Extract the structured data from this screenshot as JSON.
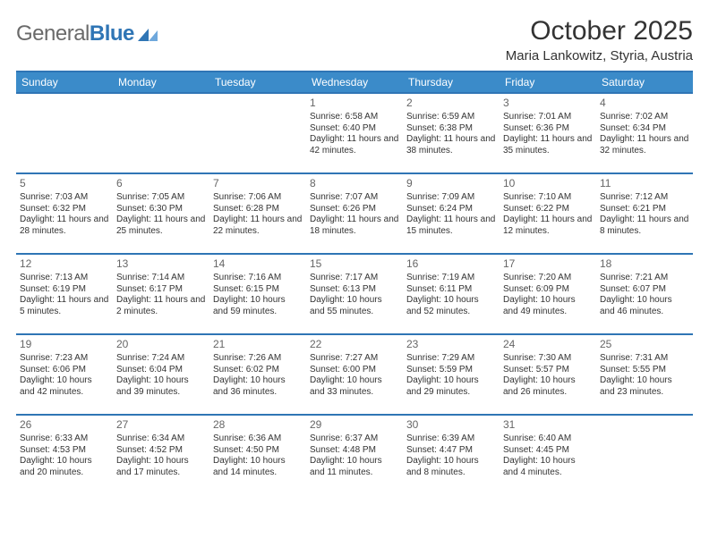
{
  "logo": {
    "text_gray": "General",
    "text_blue": "Blue"
  },
  "header": {
    "month_title": "October 2025",
    "location": "Maria Lankowitz, Styria, Austria"
  },
  "colors": {
    "header_bg": "#3b8bc9",
    "header_border": "#2f75b5",
    "text": "#333333",
    "muted": "#666666",
    "logo_gray": "#6a6a6a",
    "logo_blue": "#2f75b5",
    "background": "#ffffff"
  },
  "day_headers": [
    "Sunday",
    "Monday",
    "Tuesday",
    "Wednesday",
    "Thursday",
    "Friday",
    "Saturday"
  ],
  "weeks": [
    [
      {
        "n": "",
        "sr": "",
        "ss": "",
        "dl": ""
      },
      {
        "n": "",
        "sr": "",
        "ss": "",
        "dl": ""
      },
      {
        "n": "",
        "sr": "",
        "ss": "",
        "dl": ""
      },
      {
        "n": "1",
        "sr": "6:58 AM",
        "ss": "6:40 PM",
        "dl": "11 hours and 42 minutes."
      },
      {
        "n": "2",
        "sr": "6:59 AM",
        "ss": "6:38 PM",
        "dl": "11 hours and 38 minutes."
      },
      {
        "n": "3",
        "sr": "7:01 AM",
        "ss": "6:36 PM",
        "dl": "11 hours and 35 minutes."
      },
      {
        "n": "4",
        "sr": "7:02 AM",
        "ss": "6:34 PM",
        "dl": "11 hours and 32 minutes."
      }
    ],
    [
      {
        "n": "5",
        "sr": "7:03 AM",
        "ss": "6:32 PM",
        "dl": "11 hours and 28 minutes."
      },
      {
        "n": "6",
        "sr": "7:05 AM",
        "ss": "6:30 PM",
        "dl": "11 hours and 25 minutes."
      },
      {
        "n": "7",
        "sr": "7:06 AM",
        "ss": "6:28 PM",
        "dl": "11 hours and 22 minutes."
      },
      {
        "n": "8",
        "sr": "7:07 AM",
        "ss": "6:26 PM",
        "dl": "11 hours and 18 minutes."
      },
      {
        "n": "9",
        "sr": "7:09 AM",
        "ss": "6:24 PM",
        "dl": "11 hours and 15 minutes."
      },
      {
        "n": "10",
        "sr": "7:10 AM",
        "ss": "6:22 PM",
        "dl": "11 hours and 12 minutes."
      },
      {
        "n": "11",
        "sr": "7:12 AM",
        "ss": "6:21 PM",
        "dl": "11 hours and 8 minutes."
      }
    ],
    [
      {
        "n": "12",
        "sr": "7:13 AM",
        "ss": "6:19 PM",
        "dl": "11 hours and 5 minutes."
      },
      {
        "n": "13",
        "sr": "7:14 AM",
        "ss": "6:17 PM",
        "dl": "11 hours and 2 minutes."
      },
      {
        "n": "14",
        "sr": "7:16 AM",
        "ss": "6:15 PM",
        "dl": "10 hours and 59 minutes."
      },
      {
        "n": "15",
        "sr": "7:17 AM",
        "ss": "6:13 PM",
        "dl": "10 hours and 55 minutes."
      },
      {
        "n": "16",
        "sr": "7:19 AM",
        "ss": "6:11 PM",
        "dl": "10 hours and 52 minutes."
      },
      {
        "n": "17",
        "sr": "7:20 AM",
        "ss": "6:09 PM",
        "dl": "10 hours and 49 minutes."
      },
      {
        "n": "18",
        "sr": "7:21 AM",
        "ss": "6:07 PM",
        "dl": "10 hours and 46 minutes."
      }
    ],
    [
      {
        "n": "19",
        "sr": "7:23 AM",
        "ss": "6:06 PM",
        "dl": "10 hours and 42 minutes."
      },
      {
        "n": "20",
        "sr": "7:24 AM",
        "ss": "6:04 PM",
        "dl": "10 hours and 39 minutes."
      },
      {
        "n": "21",
        "sr": "7:26 AM",
        "ss": "6:02 PM",
        "dl": "10 hours and 36 minutes."
      },
      {
        "n": "22",
        "sr": "7:27 AM",
        "ss": "6:00 PM",
        "dl": "10 hours and 33 minutes."
      },
      {
        "n": "23",
        "sr": "7:29 AM",
        "ss": "5:59 PM",
        "dl": "10 hours and 29 minutes."
      },
      {
        "n": "24",
        "sr": "7:30 AM",
        "ss": "5:57 PM",
        "dl": "10 hours and 26 minutes."
      },
      {
        "n": "25",
        "sr": "7:31 AM",
        "ss": "5:55 PM",
        "dl": "10 hours and 23 minutes."
      }
    ],
    [
      {
        "n": "26",
        "sr": "6:33 AM",
        "ss": "4:53 PM",
        "dl": "10 hours and 20 minutes."
      },
      {
        "n": "27",
        "sr": "6:34 AM",
        "ss": "4:52 PM",
        "dl": "10 hours and 17 minutes."
      },
      {
        "n": "28",
        "sr": "6:36 AM",
        "ss": "4:50 PM",
        "dl": "10 hours and 14 minutes."
      },
      {
        "n": "29",
        "sr": "6:37 AM",
        "ss": "4:48 PM",
        "dl": "10 hours and 11 minutes."
      },
      {
        "n": "30",
        "sr": "6:39 AM",
        "ss": "4:47 PM",
        "dl": "10 hours and 8 minutes."
      },
      {
        "n": "31",
        "sr": "6:40 AM",
        "ss": "4:45 PM",
        "dl": "10 hours and 4 minutes."
      },
      {
        "n": "",
        "sr": "",
        "ss": "",
        "dl": ""
      }
    ]
  ],
  "labels": {
    "sunrise": "Sunrise:",
    "sunset": "Sunset:",
    "daylight": "Daylight:"
  }
}
